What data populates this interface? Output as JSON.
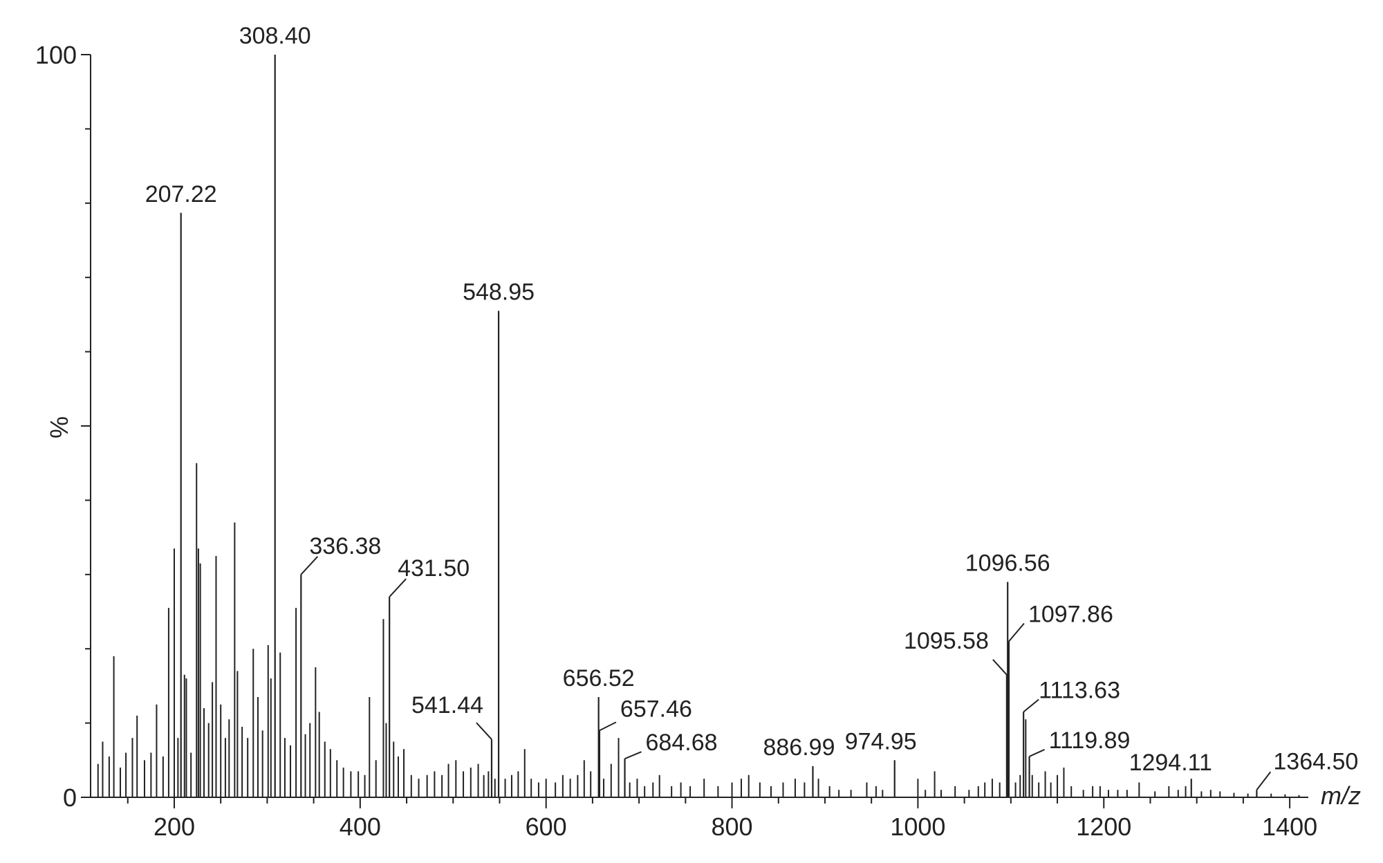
{
  "chart_data": {
    "type": "bar",
    "title": "",
    "xlabel": "m/z",
    "ylabel": "%",
    "xlim": [
      110,
      1420
    ],
    "ylim": [
      0,
      100
    ],
    "x_ticks": [
      200,
      400,
      600,
      800,
      1000,
      1200,
      1400
    ],
    "y_ticks": [
      0,
      100
    ],
    "y_ticks_unlabeled": [
      50
    ],
    "grid": false,
    "colors": {
      "line": "#222222"
    },
    "labeled_peaks": [
      {
        "x": 207.22,
        "y": 78.7,
        "text": "207.22"
      },
      {
        "x": 308.4,
        "y": 100.0,
        "text": "308.40"
      },
      {
        "x": 336.38,
        "y": 30.0,
        "text": "336.38"
      },
      {
        "x": 431.5,
        "y": 27.0,
        "text": "431.50"
      },
      {
        "x": 541.44,
        "y": 7.8,
        "text": "541.44"
      },
      {
        "x": 548.95,
        "y": 65.5,
        "text": "548.95"
      },
      {
        "x": 656.52,
        "y": 13.5,
        "text": "656.52"
      },
      {
        "x": 657.46,
        "y": 9.0,
        "text": "657.46"
      },
      {
        "x": 684.68,
        "y": 5.2,
        "text": "684.68"
      },
      {
        "x": 886.99,
        "y": 4.2,
        "text": "886.99"
      },
      {
        "x": 974.95,
        "y": 5.0,
        "text": "974.95"
      },
      {
        "x": 1095.58,
        "y": 16.5,
        "text": "1095.58"
      },
      {
        "x": 1096.56,
        "y": 29.0,
        "text": "1096.56"
      },
      {
        "x": 1097.86,
        "y": 21.0,
        "text": "1097.86"
      },
      {
        "x": 1113.63,
        "y": 11.5,
        "text": "1113.63"
      },
      {
        "x": 1119.89,
        "y": 5.5,
        "text": "1119.89"
      },
      {
        "x": 1294.11,
        "y": 2.5,
        "text": "1294.11"
      },
      {
        "x": 1364.5,
        "y": 1.0,
        "text": "1364.50"
      }
    ],
    "other_peaks": [
      {
        "x": 118,
        "y": 4.5
      },
      {
        "x": 123,
        "y": 7.5
      },
      {
        "x": 130,
        "y": 5.5
      },
      {
        "x": 135,
        "y": 19.0
      },
      {
        "x": 142,
        "y": 4.0
      },
      {
        "x": 148,
        "y": 6.0
      },
      {
        "x": 155,
        "y": 8.0
      },
      {
        "x": 160,
        "y": 11.0
      },
      {
        "x": 168,
        "y": 5.0
      },
      {
        "x": 175,
        "y": 6.0
      },
      {
        "x": 181,
        "y": 12.5
      },
      {
        "x": 188,
        "y": 5.5
      },
      {
        "x": 194,
        "y": 25.5
      },
      {
        "x": 200,
        "y": 33.5
      },
      {
        "x": 204,
        "y": 8.0
      },
      {
        "x": 211,
        "y": 16.5
      },
      {
        "x": 213,
        "y": 16.0
      },
      {
        "x": 218,
        "y": 6.0
      },
      {
        "x": 224,
        "y": 45.0
      },
      {
        "x": 226,
        "y": 33.5
      },
      {
        "x": 228,
        "y": 31.5
      },
      {
        "x": 232,
        "y": 12.0
      },
      {
        "x": 237,
        "y": 10.0
      },
      {
        "x": 241,
        "y": 15.5
      },
      {
        "x": 245,
        "y": 32.5
      },
      {
        "x": 250,
        "y": 12.5
      },
      {
        "x": 255,
        "y": 8.0
      },
      {
        "x": 259,
        "y": 10.5
      },
      {
        "x": 265,
        "y": 37.0
      },
      {
        "x": 268,
        "y": 17.0
      },
      {
        "x": 273,
        "y": 9.5
      },
      {
        "x": 279,
        "y": 8.0
      },
      {
        "x": 285,
        "y": 20.0
      },
      {
        "x": 290,
        "y": 13.5
      },
      {
        "x": 295,
        "y": 9.0
      },
      {
        "x": 301,
        "y": 20.5
      },
      {
        "x": 304,
        "y": 16.0
      },
      {
        "x": 314,
        "y": 19.5
      },
      {
        "x": 319,
        "y": 8.0
      },
      {
        "x": 325,
        "y": 7.0
      },
      {
        "x": 331,
        "y": 25.5
      },
      {
        "x": 341,
        "y": 8.5
      },
      {
        "x": 346,
        "y": 10.0
      },
      {
        "x": 352,
        "y": 17.5
      },
      {
        "x": 356,
        "y": 11.5
      },
      {
        "x": 362,
        "y": 7.5
      },
      {
        "x": 368,
        "y": 6.5
      },
      {
        "x": 375,
        "y": 5.0
      },
      {
        "x": 382,
        "y": 4.0
      },
      {
        "x": 390,
        "y": 3.5
      },
      {
        "x": 398,
        "y": 3.5
      },
      {
        "x": 405,
        "y": 3.0
      },
      {
        "x": 410,
        "y": 13.5
      },
      {
        "x": 417,
        "y": 5.0
      },
      {
        "x": 425,
        "y": 24.0
      },
      {
        "x": 428,
        "y": 10.0
      },
      {
        "x": 436,
        "y": 7.5
      },
      {
        "x": 441,
        "y": 5.5
      },
      {
        "x": 447,
        "y": 6.5
      },
      {
        "x": 455,
        "y": 3.0
      },
      {
        "x": 463,
        "y": 2.5
      },
      {
        "x": 472,
        "y": 3.0
      },
      {
        "x": 480,
        "y": 3.5
      },
      {
        "x": 488,
        "y": 3.0
      },
      {
        "x": 495,
        "y": 4.5
      },
      {
        "x": 503,
        "y": 5.0
      },
      {
        "x": 511,
        "y": 3.5
      },
      {
        "x": 519,
        "y": 4.0
      },
      {
        "x": 527,
        "y": 4.5
      },
      {
        "x": 533,
        "y": 3.0
      },
      {
        "x": 538,
        "y": 3.5
      },
      {
        "x": 545,
        "y": 2.5
      },
      {
        "x": 556,
        "y": 2.5
      },
      {
        "x": 563,
        "y": 3.0
      },
      {
        "x": 570,
        "y": 3.5
      },
      {
        "x": 577,
        "y": 6.5
      },
      {
        "x": 584,
        "y": 2.5
      },
      {
        "x": 592,
        "y": 2.0
      },
      {
        "x": 600,
        "y": 2.5
      },
      {
        "x": 610,
        "y": 2.0
      },
      {
        "x": 618,
        "y": 3.0
      },
      {
        "x": 626,
        "y": 2.5
      },
      {
        "x": 634,
        "y": 3.0
      },
      {
        "x": 641,
        "y": 5.0
      },
      {
        "x": 648,
        "y": 3.5
      },
      {
        "x": 662,
        "y": 2.5
      },
      {
        "x": 670,
        "y": 4.5
      },
      {
        "x": 678,
        "y": 8.0
      },
      {
        "x": 690,
        "y": 2.0
      },
      {
        "x": 698,
        "y": 2.5
      },
      {
        "x": 706,
        "y": 1.5
      },
      {
        "x": 715,
        "y": 2.0
      },
      {
        "x": 722,
        "y": 3.0
      },
      {
        "x": 735,
        "y": 1.5
      },
      {
        "x": 745,
        "y": 2.0
      },
      {
        "x": 755,
        "y": 1.5
      },
      {
        "x": 770,
        "y": 2.5
      },
      {
        "x": 785,
        "y": 1.5
      },
      {
        "x": 800,
        "y": 2.0
      },
      {
        "x": 810,
        "y": 2.5
      },
      {
        "x": 818,
        "y": 3.0
      },
      {
        "x": 830,
        "y": 2.0
      },
      {
        "x": 842,
        "y": 1.5
      },
      {
        "x": 855,
        "y": 2.0
      },
      {
        "x": 868,
        "y": 2.5
      },
      {
        "x": 878,
        "y": 2.0
      },
      {
        "x": 893,
        "y": 2.5
      },
      {
        "x": 905,
        "y": 1.5
      },
      {
        "x": 915,
        "y": 1.0
      },
      {
        "x": 928,
        "y": 1.0
      },
      {
        "x": 945,
        "y": 2.0
      },
      {
        "x": 955,
        "y": 1.5
      },
      {
        "x": 962,
        "y": 1.0
      },
      {
        "x": 1000,
        "y": 2.5
      },
      {
        "x": 1008,
        "y": 1.0
      },
      {
        "x": 1018,
        "y": 3.5
      },
      {
        "x": 1025,
        "y": 1.0
      },
      {
        "x": 1040,
        "y": 1.5
      },
      {
        "x": 1055,
        "y": 1.0
      },
      {
        "x": 1065,
        "y": 1.5
      },
      {
        "x": 1072,
        "y": 2.0
      },
      {
        "x": 1080,
        "y": 2.5
      },
      {
        "x": 1088,
        "y": 2.0
      },
      {
        "x": 1105,
        "y": 2.0
      },
      {
        "x": 1110,
        "y": 3.0
      },
      {
        "x": 1116,
        "y": 10.5
      },
      {
        "x": 1123,
        "y": 3.0
      },
      {
        "x": 1130,
        "y": 2.0
      },
      {
        "x": 1137,
        "y": 3.5
      },
      {
        "x": 1143,
        "y": 2.0
      },
      {
        "x": 1150,
        "y": 3.0
      },
      {
        "x": 1157,
        "y": 4.0
      },
      {
        "x": 1165,
        "y": 1.5
      },
      {
        "x": 1178,
        "y": 1.0
      },
      {
        "x": 1188,
        "y": 1.5
      },
      {
        "x": 1196,
        "y": 1.5
      },
      {
        "x": 1205,
        "y": 1.0
      },
      {
        "x": 1215,
        "y": 1.0
      },
      {
        "x": 1225,
        "y": 1.0
      },
      {
        "x": 1238,
        "y": 2.0
      },
      {
        "x": 1255,
        "y": 0.8
      },
      {
        "x": 1270,
        "y": 1.5
      },
      {
        "x": 1280,
        "y": 1.0
      },
      {
        "x": 1288,
        "y": 1.5
      },
      {
        "x": 1305,
        "y": 0.8
      },
      {
        "x": 1315,
        "y": 1.0
      },
      {
        "x": 1325,
        "y": 0.8
      },
      {
        "x": 1340,
        "y": 0.6
      },
      {
        "x": 1355,
        "y": 0.5
      },
      {
        "x": 1380,
        "y": 0.5
      },
      {
        "x": 1395,
        "y": 0.4
      },
      {
        "x": 1410,
        "y": 0.3
      }
    ]
  }
}
